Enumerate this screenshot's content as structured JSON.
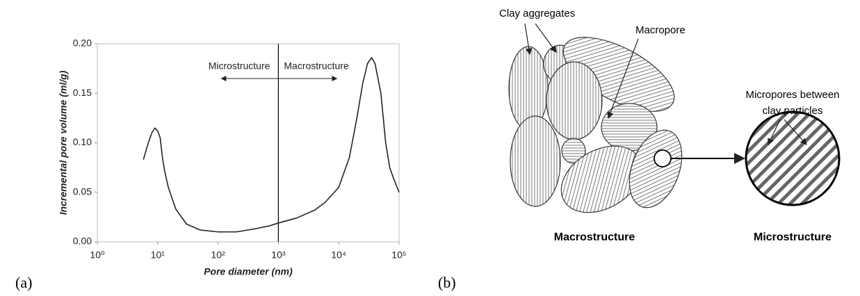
{
  "chart_data": {
    "type": "line",
    "panel_label": "(a)",
    "xlabel": "Pore diameter (nm)",
    "ylabel": "Incremental pore volume (ml/g)",
    "log_x": true,
    "color": "#222222",
    "xlim": [
      1,
      100000
    ],
    "xticks": [
      {
        "value": 1,
        "label": "10⁰"
      },
      {
        "value": 10,
        "label": "10¹"
      },
      {
        "value": 100,
        "label": "10²"
      },
      {
        "value": 1000,
        "label": "10³"
      },
      {
        "value": 10000,
        "label": "10⁴"
      },
      {
        "value": 100000,
        "label": "10⁵"
      }
    ],
    "ylim": [
      0,
      0.2
    ],
    "yticks": [
      {
        "value": 0,
        "label": "0.00"
      },
      0.05,
      {
        "value": 0.1,
        "label": "0.10"
      },
      0.15,
      {
        "value": 0.2,
        "label": "0.20"
      }
    ],
    "divider_x": 1000,
    "annotations": [
      "Microstructure",
      "Macrostructure"
    ],
    "x": [
      5.8,
      7,
      8,
      9,
      10,
      11,
      12,
      13,
      15,
      20,
      30,
      50,
      100,
      200,
      400,
      700,
      1000,
      2000,
      4000,
      6000,
      10000,
      15000,
      20000,
      25000,
      30000,
      35000,
      40000,
      50000,
      60000,
      70000,
      80000,
      100000
    ],
    "values": [
      0.083,
      0.1,
      0.11,
      0.115,
      0.112,
      0.105,
      0.085,
      0.072,
      0.055,
      0.033,
      0.018,
      0.012,
      0.01,
      0.01,
      0.013,
      0.016,
      0.019,
      0.024,
      0.032,
      0.04,
      0.055,
      0.085,
      0.125,
      0.16,
      0.18,
      0.186,
      0.18,
      0.15,
      0.1,
      0.075,
      0.065,
      0.05
    ]
  },
  "diagram": {
    "panel_label": "(b)",
    "labels": {
      "clay_aggregates": "Clay aggregates",
      "macropore": "Macropore",
      "micropores": [
        "Micropores between",
        "clay particles"
      ],
      "macrostructure": "Macrostructure",
      "microstructure": "Microstructure"
    }
  }
}
